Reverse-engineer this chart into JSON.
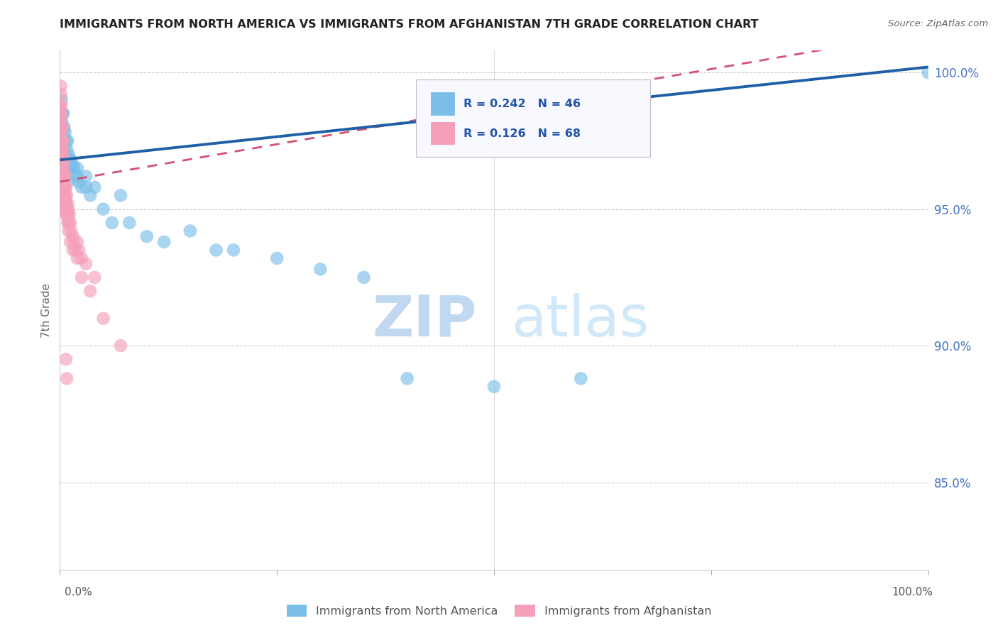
{
  "title": "IMMIGRANTS FROM NORTH AMERICA VS IMMIGRANTS FROM AFGHANISTAN 7TH GRADE CORRELATION CHART",
  "source": "Source: ZipAtlas.com",
  "ylabel": "7th Grade",
  "R_north_america": 0.242,
  "N_north_america": 46,
  "R_afghanistan": 0.126,
  "N_afghanistan": 68,
  "color_north_america": "#7bbfe8",
  "color_afghanistan": "#f4a0b8",
  "trendline_north_america_color": "#1f5fa6",
  "trendline_afghanistan_color": "#d45070",
  "background_color": "#ffffff",
  "grid_color": "#cccccc",
  "watermark_zip_color": "#c0d8f0",
  "watermark_atlas_color": "#d0e8f8",
  "ytick_positions": [
    0.85,
    0.9,
    0.95,
    1.0
  ],
  "ytick_labels": [
    "85.0%",
    "90.0%",
    "95.0%",
    "100.0%"
  ],
  "ymin": 0.818,
  "ymax": 1.008,
  "xmin": 0.0,
  "xmax": 1.0,
  "na_seed_x": [
    0.002,
    0.003,
    0.004,
    0.004,
    0.005,
    0.005,
    0.006,
    0.007,
    0.008,
    0.009,
    0.01,
    0.011,
    0.012,
    0.013,
    0.015,
    0.016,
    0.018,
    0.02,
    0.022,
    0.025,
    0.03,
    0.035,
    0.04,
    0.05,
    0.06,
    0.07,
    0.08,
    0.1,
    0.12,
    0.15,
    0.18,
    0.2,
    0.25,
    0.3,
    0.35,
    0.4,
    0.5,
    0.6,
    0.002,
    0.003,
    0.005,
    0.007,
    0.01,
    0.02,
    0.03,
    1.0
  ],
  "na_seed_y": [
    0.99,
    0.985,
    0.985,
    0.975,
    0.98,
    0.97,
    0.978,
    0.975,
    0.972,
    0.975,
    0.97,
    0.968,
    0.965,
    0.968,
    0.966,
    0.965,
    0.962,
    0.965,
    0.96,
    0.958,
    0.962,
    0.955,
    0.958,
    0.95,
    0.945,
    0.955,
    0.945,
    0.94,
    0.938,
    0.942,
    0.935,
    0.935,
    0.932,
    0.928,
    0.925,
    0.888,
    0.885,
    0.888,
    0.982,
    0.978,
    0.972,
    0.965,
    0.96,
    0.962,
    0.958,
    1.0
  ],
  "af_seed_x": [
    0.001,
    0.001,
    0.001,
    0.001,
    0.002,
    0.002,
    0.002,
    0.002,
    0.003,
    0.003,
    0.003,
    0.003,
    0.003,
    0.004,
    0.004,
    0.004,
    0.004,
    0.005,
    0.005,
    0.005,
    0.005,
    0.006,
    0.006,
    0.006,
    0.007,
    0.007,
    0.007,
    0.008,
    0.008,
    0.009,
    0.009,
    0.01,
    0.01,
    0.011,
    0.012,
    0.013,
    0.015,
    0.016,
    0.018,
    0.02,
    0.022,
    0.025,
    0.03,
    0.04,
    0.05,
    0.07,
    0.001,
    0.001,
    0.002,
    0.002,
    0.003,
    0.003,
    0.004,
    0.004,
    0.005,
    0.005,
    0.006,
    0.007,
    0.008,
    0.009,
    0.01,
    0.012,
    0.015,
    0.02,
    0.025,
    0.035,
    0.007,
    0.008
  ],
  "af_seed_y": [
    0.995,
    0.992,
    0.988,
    0.985,
    0.985,
    0.98,
    0.976,
    0.972,
    0.98,
    0.975,
    0.97,
    0.965,
    0.96,
    0.972,
    0.968,
    0.963,
    0.958,
    0.968,
    0.963,
    0.958,
    0.953,
    0.962,
    0.957,
    0.952,
    0.958,
    0.953,
    0.948,
    0.955,
    0.95,
    0.952,
    0.948,
    0.95,
    0.945,
    0.948,
    0.945,
    0.942,
    0.94,
    0.938,
    0.935,
    0.938,
    0.935,
    0.932,
    0.93,
    0.925,
    0.91,
    0.9,
    0.988,
    0.982,
    0.978,
    0.97,
    0.975,
    0.968,
    0.965,
    0.96,
    0.96,
    0.955,
    0.955,
    0.95,
    0.948,
    0.945,
    0.942,
    0.938,
    0.935,
    0.932,
    0.925,
    0.92,
    0.895,
    0.888
  ]
}
